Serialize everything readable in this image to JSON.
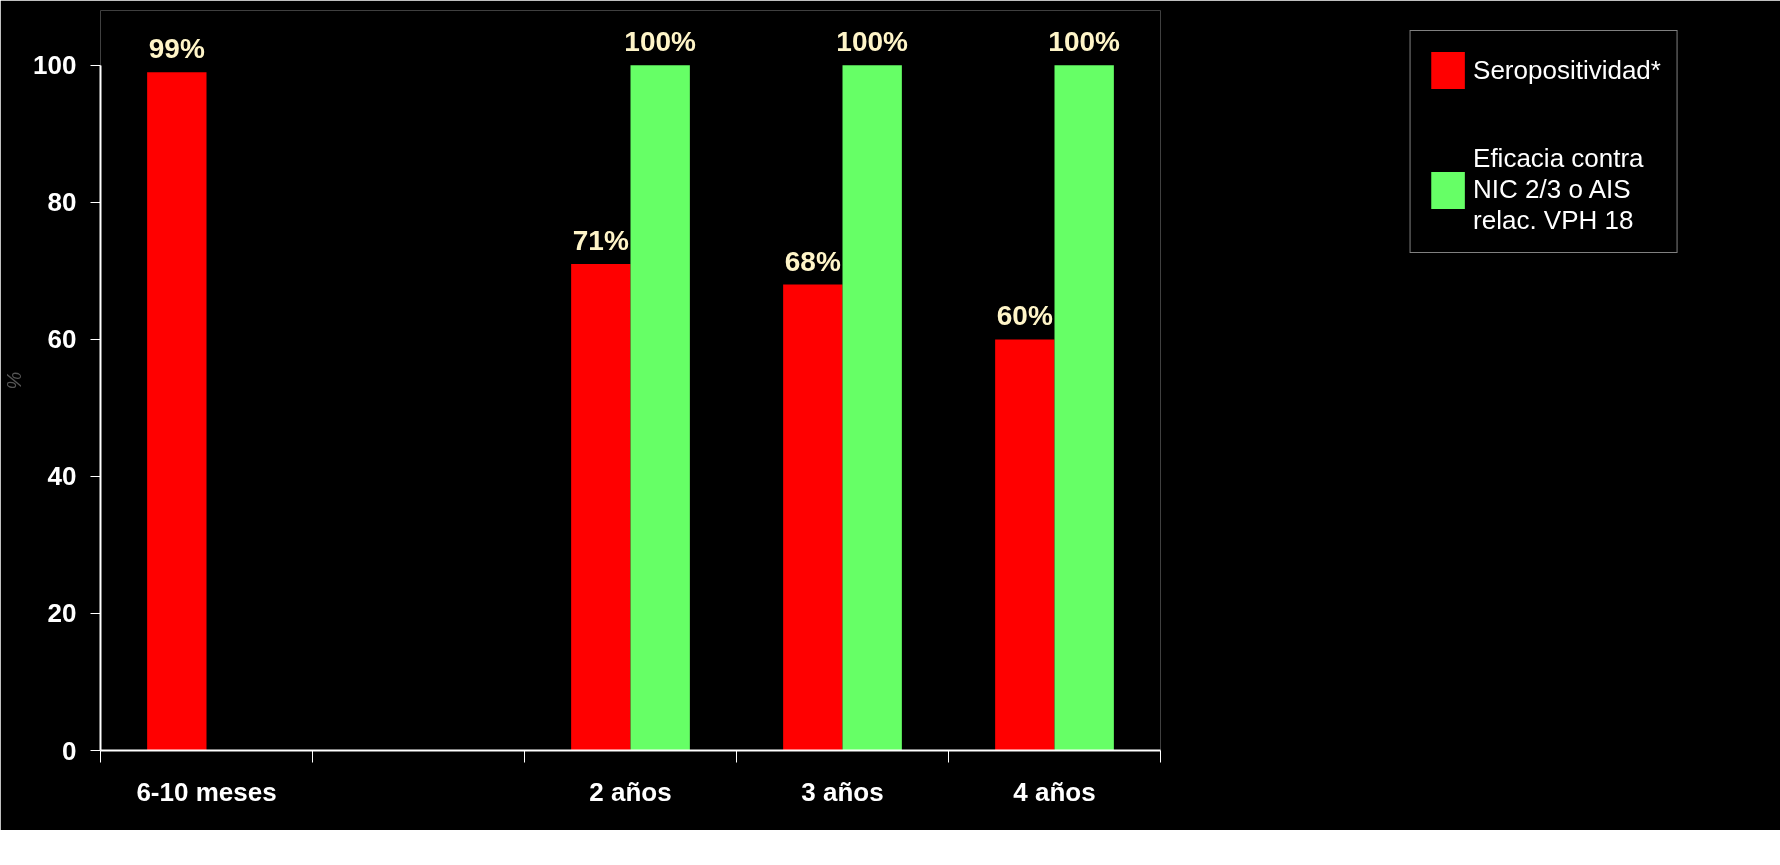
{
  "chart_data": {
    "type": "bar",
    "ylabel": "%",
    "categories": [
      "6-10 meses",
      null,
      "2 años",
      "3 años",
      "4 años"
    ],
    "series": [
      {
        "name": "Seropositividad*",
        "color": "#ff0000",
        "values": [
          99,
          null,
          71,
          68,
          60
        ],
        "value_labels": [
          "99%",
          null,
          "71%",
          "68%",
          "60%"
        ]
      },
      {
        "name": "Eficacia contra\nNIC 2/3 o AIS\nrelac. VPH 18",
        "color": "#66ff66",
        "values": [
          null,
          null,
          100,
          100,
          100
        ],
        "value_labels": [
          null,
          null,
          "100%",
          "100%",
          "100%"
        ]
      }
    ],
    "ylim": [
      0,
      100
    ],
    "yticks": [
      0,
      20,
      40,
      60,
      80,
      100
    ],
    "grid": false,
    "legend": "right"
  }
}
